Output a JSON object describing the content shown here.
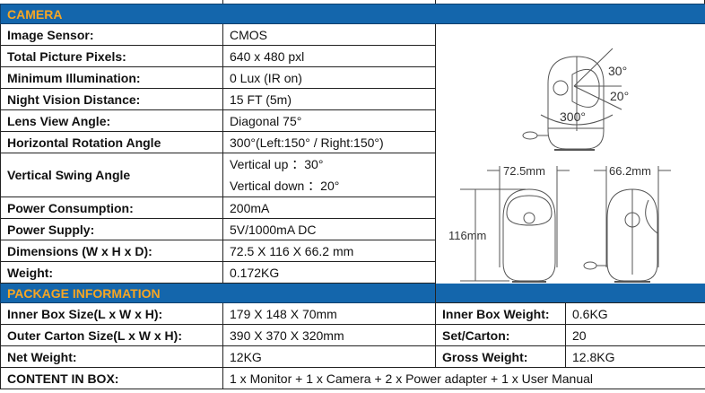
{
  "camera": {
    "header": "CAMERA",
    "rows": [
      {
        "label": "Image Sensor:",
        "value": "CMOS"
      },
      {
        "label": "Total Picture Pixels:",
        "value": "640 x 480 pxl"
      },
      {
        "label": "Minimum Illumination:",
        "value": "0 Lux (IR on)"
      },
      {
        "label": "Night Vision Distance:",
        "value": "15 FT (5m)"
      },
      {
        "label": "Lens View Angle:",
        "value": "Diagonal 75°"
      },
      {
        "label": "Horizontal Rotation Angle",
        "value": "300°(Left:150° / Right:150°)"
      },
      {
        "label": "Vertical Swing Angle",
        "value": "Vertical up  ：30°",
        "value2": "Vertical down ：20°"
      },
      {
        "label": "Power Consumption:",
        "value": "200mA"
      },
      {
        "label": "Power Supply:",
        "value": "5V/1000mA DC"
      },
      {
        "label": "Dimensions (W x H x D):",
        "value": "72.5 X 116 X 66.2 mm"
      },
      {
        "label": "Weight:",
        "value": "0.172KG"
      }
    ],
    "diagram": {
      "up_angle": "30°",
      "down_angle": "20°",
      "rotation": "300°",
      "width": "72.5mm",
      "height": "116mm",
      "depth": "66.2mm"
    }
  },
  "package": {
    "header": "PACKAGE INFORMATION",
    "rows": [
      {
        "label": "Inner Box Size(L x W x H):",
        "value": "179 X 148 X 70mm",
        "label2": "Inner Box Weight:",
        "value2": "0.6KG"
      },
      {
        "label": "Outer Carton Size(L x W x H):",
        "value": "390 X 370 X 320mm",
        "label2": "Set/Carton:",
        "value2": "20"
      },
      {
        "label": "Net Weight:",
        "value": "12KG",
        "label2": "Gross Weight:",
        "value2": "12.8KG"
      }
    ],
    "content": {
      "label": "CONTENT IN BOX:",
      "value": "1 x Monitor + 1 x Camera + 2 x Power adapter + 1 x User Manual"
    }
  }
}
